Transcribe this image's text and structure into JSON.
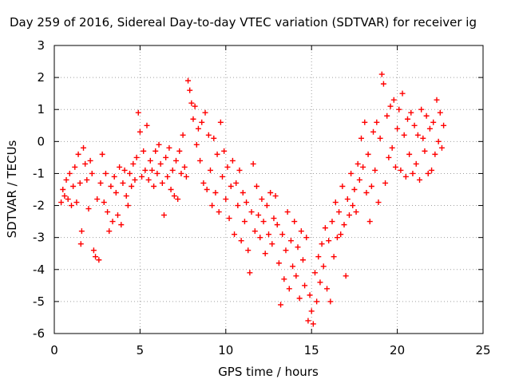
{
  "chart_data": {
    "type": "scatter",
    "title": "Day 259 of 2016, Sidereal Day-to-day VTEC variation (SDTVAR) for receiver ig",
    "xlabel": "GPS time / hours",
    "ylabel": "SDTVAR / TECUs",
    "xlim": [
      0,
      25
    ],
    "ylim": [
      -6,
      3
    ],
    "xticks": [
      "0",
      "5",
      "10",
      "15",
      "20",
      "25"
    ],
    "yticks": [
      "-6",
      "-5",
      "-4",
      "-3",
      "-2",
      "-1",
      "0",
      "1",
      "2",
      "3"
    ],
    "grid": true,
    "marker": "plus",
    "series": [
      {
        "color": "#ff0000",
        "points": [
          [
            0.4,
            -1.9
          ],
          [
            0.5,
            -1.5
          ],
          [
            0.6,
            -1.7
          ],
          [
            0.7,
            -1.2
          ],
          [
            0.8,
            -1.8
          ],
          [
            0.9,
            -1.0
          ],
          [
            1.0,
            -2.0
          ],
          [
            1.1,
            -1.4
          ],
          [
            1.2,
            -0.8
          ],
          [
            1.3,
            -1.9
          ],
          [
            1.4,
            -0.4
          ],
          [
            1.5,
            -1.3
          ],
          [
            1.55,
            -3.2
          ],
          [
            1.6,
            -2.8
          ],
          [
            1.7,
            -0.2
          ],
          [
            1.8,
            -0.7
          ],
          [
            1.9,
            -1.2
          ],
          [
            2.0,
            -2.1
          ],
          [
            2.1,
            -0.6
          ],
          [
            2.2,
            -1.0
          ],
          [
            2.3,
            -3.4
          ],
          [
            2.4,
            -3.6
          ],
          [
            2.5,
            -1.8
          ],
          [
            2.6,
            -3.7
          ],
          [
            2.7,
            -1.3
          ],
          [
            2.8,
            -0.4
          ],
          [
            2.9,
            -1.9
          ],
          [
            3.0,
            -1.0
          ],
          [
            3.1,
            -2.2
          ],
          [
            3.2,
            -2.8
          ],
          [
            3.3,
            -1.4
          ],
          [
            3.4,
            -2.5
          ],
          [
            3.5,
            -1.1
          ],
          [
            3.6,
            -1.6
          ],
          [
            3.7,
            -2.3
          ],
          [
            3.8,
            -0.8
          ],
          [
            3.9,
            -2.6
          ],
          [
            4.0,
            -1.3
          ],
          [
            4.1,
            -0.9
          ],
          [
            4.2,
            -1.7
          ],
          [
            4.3,
            -2.0
          ],
          [
            4.4,
            -1.0
          ],
          [
            4.5,
            -1.4
          ],
          [
            4.6,
            -0.7
          ],
          [
            4.7,
            -1.2
          ],
          [
            4.8,
            -0.5
          ],
          [
            4.9,
            0.9
          ],
          [
            5.0,
            0.3
          ],
          [
            5.1,
            -1.1
          ],
          [
            5.2,
            -0.3
          ],
          [
            5.3,
            -0.9
          ],
          [
            5.4,
            0.5
          ],
          [
            5.5,
            -1.2
          ],
          [
            5.6,
            -0.6
          ],
          [
            5.7,
            -0.9
          ],
          [
            5.8,
            -1.4
          ],
          [
            5.9,
            -0.3
          ],
          [
            6.0,
            -1.0
          ],
          [
            6.1,
            -0.1
          ],
          [
            6.2,
            -0.7
          ],
          [
            6.3,
            -1.3
          ],
          [
            6.4,
            -2.3
          ],
          [
            6.5,
            -0.5
          ],
          [
            6.6,
            -1.1
          ],
          [
            6.7,
            -0.2
          ],
          [
            6.8,
            -1.5
          ],
          [
            6.9,
            -0.9
          ],
          [
            7.0,
            -1.7
          ],
          [
            7.1,
            -0.6
          ],
          [
            7.2,
            -1.8
          ],
          [
            7.3,
            -0.3
          ],
          [
            7.4,
            -1.0
          ],
          [
            7.5,
            0.2
          ],
          [
            7.6,
            -0.8
          ],
          [
            7.7,
            -1.1
          ],
          [
            7.8,
            1.9
          ],
          [
            7.9,
            1.6
          ],
          [
            8.0,
            1.2
          ],
          [
            8.1,
            0.7
          ],
          [
            8.2,
            1.1
          ],
          [
            8.3,
            -0.1
          ],
          [
            8.4,
            0.4
          ],
          [
            8.5,
            -0.6
          ],
          [
            8.6,
            0.6
          ],
          [
            8.7,
            -1.3
          ],
          [
            8.8,
            0.9
          ],
          [
            8.9,
            -1.5
          ],
          [
            9.0,
            0.2
          ],
          [
            9.1,
            -0.9
          ],
          [
            9.2,
            -2.0
          ],
          [
            9.3,
            0.1
          ],
          [
            9.4,
            -1.6
          ],
          [
            9.5,
            -0.4
          ],
          [
            9.6,
            -2.2
          ],
          [
            9.7,
            0.6
          ],
          [
            9.8,
            -1.1
          ],
          [
            9.9,
            -0.3
          ],
          [
            10.0,
            -1.8
          ],
          [
            10.1,
            -0.8
          ],
          [
            10.2,
            -2.4
          ],
          [
            10.3,
            -1.4
          ],
          [
            10.4,
            -0.6
          ],
          [
            10.5,
            -2.9
          ],
          [
            10.6,
            -1.3
          ],
          [
            10.7,
            -2.0
          ],
          [
            10.8,
            -0.9
          ],
          [
            10.9,
            -3.1
          ],
          [
            11.0,
            -1.6
          ],
          [
            11.1,
            -2.5
          ],
          [
            11.2,
            -1.9
          ],
          [
            11.3,
            -3.4
          ],
          [
            11.4,
            -4.1
          ],
          [
            11.5,
            -2.2
          ],
          [
            11.6,
            -0.7
          ],
          [
            11.7,
            -2.8
          ],
          [
            11.8,
            -1.4
          ],
          [
            11.9,
            -2.3
          ],
          [
            12.0,
            -3.0
          ],
          [
            12.1,
            -1.8
          ],
          [
            12.2,
            -2.5
          ],
          [
            12.3,
            -3.5
          ],
          [
            12.4,
            -2.0
          ],
          [
            12.5,
            -2.9
          ],
          [
            12.6,
            -1.6
          ],
          [
            12.7,
            -3.2
          ],
          [
            12.8,
            -2.4
          ],
          [
            12.9,
            -1.7
          ],
          [
            13.0,
            -2.6
          ],
          [
            13.1,
            -3.8
          ],
          [
            13.2,
            -5.1
          ],
          [
            13.3,
            -2.9
          ],
          [
            13.4,
            -4.3
          ],
          [
            13.5,
            -3.4
          ],
          [
            13.6,
            -2.2
          ],
          [
            13.7,
            -4.6
          ],
          [
            13.8,
            -3.1
          ],
          [
            13.9,
            -3.9
          ],
          [
            14.0,
            -2.5
          ],
          [
            14.1,
            -4.2
          ],
          [
            14.2,
            -3.3
          ],
          [
            14.3,
            -4.9
          ],
          [
            14.4,
            -2.8
          ],
          [
            14.5,
            -3.7
          ],
          [
            14.6,
            -4.5
          ],
          [
            14.7,
            -3.0
          ],
          [
            14.8,
            -5.6
          ],
          [
            14.9,
            -4.8
          ],
          [
            15.0,
            -5.3
          ],
          [
            15.1,
            -5.7
          ],
          [
            15.2,
            -4.1
          ],
          [
            15.3,
            -5.0
          ],
          [
            15.4,
            -3.6
          ],
          [
            15.5,
            -4.4
          ],
          [
            15.6,
            -3.2
          ],
          [
            15.7,
            -3.9
          ],
          [
            15.8,
            -2.7
          ],
          [
            15.9,
            -4.6
          ],
          [
            16.0,
            -3.1
          ],
          [
            16.1,
            -5.0
          ],
          [
            16.2,
            -2.5
          ],
          [
            16.3,
            -3.6
          ],
          [
            16.4,
            -1.9
          ],
          [
            16.5,
            -3.0
          ],
          [
            16.6,
            -2.2
          ],
          [
            16.7,
            -2.9
          ],
          [
            16.8,
            -1.4
          ],
          [
            16.9,
            -2.6
          ],
          [
            17.0,
            -4.2
          ],
          [
            17.1,
            -1.8
          ],
          [
            17.2,
            -2.3
          ],
          [
            17.3,
            -1.0
          ],
          [
            17.4,
            -2.0
          ],
          [
            17.5,
            -1.5
          ],
          [
            17.6,
            -2.2
          ],
          [
            17.7,
            -0.7
          ],
          [
            17.8,
            -1.2
          ],
          [
            17.9,
            0.1
          ],
          [
            18.0,
            -0.8
          ],
          [
            18.1,
            0.6
          ],
          [
            18.2,
            -1.6
          ],
          [
            18.3,
            -0.4
          ],
          [
            18.4,
            -2.5
          ],
          [
            18.5,
            -1.4
          ],
          [
            18.6,
            0.3
          ],
          [
            18.7,
            -0.9
          ],
          [
            18.8,
            0.6
          ],
          [
            18.9,
            -1.9
          ],
          [
            19.0,
            0.1
          ],
          [
            19.1,
            2.1
          ],
          [
            19.2,
            1.8
          ],
          [
            19.3,
            -1.3
          ],
          [
            19.4,
            0.8
          ],
          [
            19.5,
            -0.5
          ],
          [
            19.6,
            1.1
          ],
          [
            19.7,
            -0.2
          ],
          [
            19.8,
            1.3
          ],
          [
            19.9,
            -0.8
          ],
          [
            20.0,
            0.4
          ],
          [
            20.1,
            1.0
          ],
          [
            20.2,
            -0.9
          ],
          [
            20.3,
            1.5
          ],
          [
            20.4,
            0.2
          ],
          [
            20.5,
            -1.1
          ],
          [
            20.6,
            0.7
          ],
          [
            20.7,
            -0.4
          ],
          [
            20.8,
            0.9
          ],
          [
            20.9,
            -1.0
          ],
          [
            21.0,
            0.5
          ],
          [
            21.1,
            -0.7
          ],
          [
            21.2,
            0.2
          ],
          [
            21.3,
            -1.2
          ],
          [
            21.4,
            1.0
          ],
          [
            21.5,
            0.1
          ],
          [
            21.6,
            -0.3
          ],
          [
            21.7,
            0.8
          ],
          [
            21.8,
            -1.0
          ],
          [
            21.9,
            0.4
          ],
          [
            22.0,
            -0.9
          ],
          [
            22.1,
            0.6
          ],
          [
            22.2,
            -0.4
          ],
          [
            22.3,
            1.3
          ],
          [
            22.4,
            0.0
          ],
          [
            22.5,
            0.9
          ],
          [
            22.6,
            -0.2
          ],
          [
            22.7,
            0.5
          ]
        ]
      }
    ]
  }
}
